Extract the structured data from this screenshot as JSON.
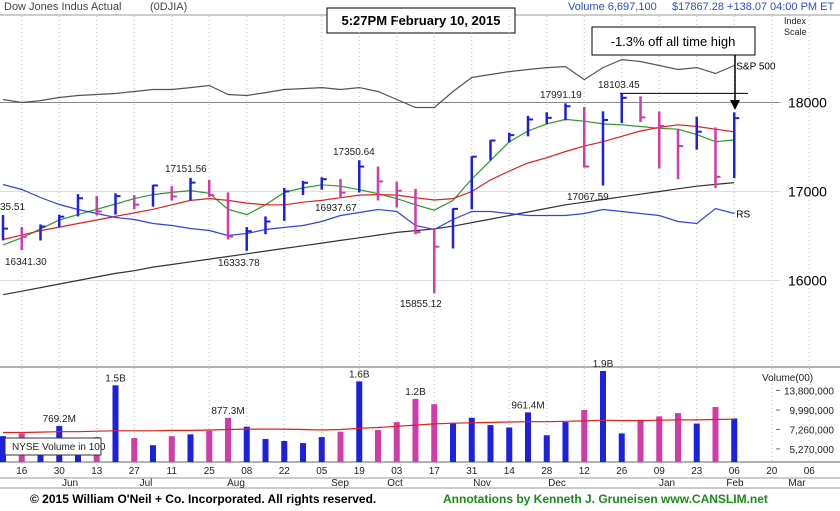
{
  "header": {
    "name": "Dow Jones Indus Actual",
    "symbol": "(0DJIA)",
    "volume": "Volume 6,697,100",
    "price": "$17867.28 +138.07",
    "time": "04:00 PM ET",
    "timestamp": "5:27PM February 10, 2015",
    "scale_label": [
      "Index",
      "Scale"
    ]
  },
  "chart_data": [
    {
      "type": "ohlc",
      "high": [
        16736,
        16600,
        16630,
        16740,
        16970,
        16950,
        16980,
        16960,
        17075,
        17060,
        17152,
        17130,
        16990,
        16600,
        16720,
        17040,
        17120,
        17160,
        17140,
        17351,
        17280,
        17110,
        17030,
        16590,
        16810,
        17395,
        17580,
        17660,
        17850,
        17890,
        17991,
        17950,
        17900,
        18103,
        18070,
        17900,
        17700,
        17840,
        17720,
        17890
      ],
      "low": [
        16450,
        16341,
        16450,
        16600,
        16720,
        16730,
        16740,
        16800,
        16830,
        16900,
        16900,
        16940,
        16460,
        16334,
        16520,
        16670,
        16960,
        17020,
        16938,
        16990,
        16900,
        16820,
        16520,
        15855,
        16360,
        16800,
        17350,
        17550,
        17620,
        17760,
        17800,
        17270,
        17068,
        17770,
        17780,
        17260,
        17140,
        17470,
        17040,
        17150
      ],
      "close": [
        16583,
        16491,
        16606,
        16717,
        16924,
        16776,
        16948,
        16852,
        17068,
        16944,
        17100,
        16961,
        16493,
        16554,
        16663,
        17001,
        17098,
        17138,
        16987,
        17280,
        17113,
        17009,
        16544,
        16380,
        16805,
        17391,
        17573,
        17634,
        17810,
        17828,
        17958,
        17280,
        17804,
        18053,
        17833,
        17737,
        17511,
        17672,
        17165,
        17825
      ],
      "up_color": "#1f1fe0",
      "down_color": "#d23ca8",
      "ylim": [
        15050,
        18950
      ],
      "yticks": [
        16000,
        17000,
        18000
      ],
      "grid": true,
      "lines": [
        {
          "color": "#2a9a2a",
          "values": [
            16400,
            16480,
            16580,
            16680,
            16740,
            16800,
            16860,
            16920,
            16965,
            16990,
            17010,
            16980,
            16800,
            16740,
            16850,
            16990,
            17040,
            17075,
            17060,
            17020,
            16975,
            16920,
            16850,
            16790,
            16900,
            17140,
            17350,
            17560,
            17680,
            17760,
            17810,
            17790,
            17760,
            17750,
            17730,
            17710,
            17700,
            17640,
            17560,
            17580
          ]
        },
        {
          "color": "#e0201a",
          "values": [
            16460,
            16510,
            16560,
            16600,
            16640,
            16680,
            16720,
            16760,
            16800,
            16850,
            16900,
            16920,
            16900,
            16870,
            16850,
            16850,
            16880,
            16900,
            16930,
            16960,
            16965,
            16960,
            16930,
            16905,
            16920,
            17000,
            17130,
            17230,
            17320,
            17380,
            17450,
            17510,
            17560,
            17620,
            17680,
            17720,
            17750,
            17730,
            17700,
            17670
          ]
        },
        {
          "color": "#333333",
          "values": [
            15840,
            15880,
            15920,
            15960,
            16000,
            16040,
            16080,
            16110,
            16150,
            16180,
            16210,
            16240,
            16270,
            16300,
            16330,
            16360,
            16390,
            16420,
            16450,
            16480,
            16510,
            16540,
            16560,
            16580,
            16610,
            16650,
            16690,
            16730,
            16770,
            16810,
            16850,
            16880,
            16910,
            16940,
            16970,
            17000,
            17030,
            17060,
            17080,
            17100
          ]
        },
        {
          "name": "S&P 500",
          "color": "#555555",
          "values": [
            18034,
            18000,
            18022,
            18056,
            18079,
            18090,
            18101,
            18124,
            18146,
            18146,
            18168,
            18191,
            18090,
            18079,
            18112,
            18146,
            18157,
            18168,
            18146,
            18168,
            18124,
            18034,
            17944,
            17944,
            18124,
            18281,
            18315,
            18348,
            18371,
            18393,
            18404,
            18258,
            18393,
            18483,
            18461,
            18416,
            18371,
            18393,
            18326,
            18416
          ]
        },
        {
          "name": "RS",
          "color": "#3344dd",
          "values": [
            17079,
            17022,
            16933,
            16854,
            16798,
            16753,
            16708,
            16685,
            16640,
            16618,
            16584,
            16562,
            16506,
            16528,
            16573,
            16596,
            16618,
            16663,
            16730,
            16764,
            16798,
            16775,
            16618,
            16573,
            16685,
            16775,
            16775,
            16753,
            16730,
            16730,
            16730,
            16753,
            16798,
            16775,
            16753,
            16730,
            16663,
            16640,
            16809,
            16753
          ]
        }
      ],
      "price_labels": [
        "35.51",
        "16341.30",
        "17151.56",
        "16333.78",
        "17350.64",
        "16937.67",
        "15855.12",
        "17991.19",
        "18103.45",
        "17067.59"
      ],
      "annotation": "-1.3% off all time high"
    },
    {
      "type": "bar",
      "categories": [
        null,
        "16",
        null,
        "30",
        null,
        "13",
        null,
        "27",
        null,
        "11",
        null,
        "25",
        null,
        "08",
        null,
        "22",
        null,
        "05",
        null,
        "19",
        null,
        "03",
        null,
        "17",
        null,
        "31",
        null,
        "14",
        null,
        "28",
        null,
        "12",
        null,
        "26",
        null,
        "09",
        null,
        "23",
        null,
        "06",
        null,
        "20",
        null,
        "06"
      ],
      "months": [
        "Jun",
        "Jul",
        "Aug",
        "Sep",
        "Oct",
        "Nov",
        "Dec",
        "Jan",
        "Feb",
        "Mar"
      ],
      "values": [
        6500000,
        6800000,
        6000000,
        7692000,
        6200000,
        6400000,
        15000000,
        6300000,
        5600000,
        6500000,
        6700000,
        7100000,
        8773000,
        7600000,
        6200000,
        6000000,
        5800000,
        6400000,
        7000000,
        16000000,
        7200000,
        8200000,
        12000000,
        11000000,
        8000000,
        8800000,
        7800000,
        7500000,
        9614000,
        6600000,
        8200000,
        10000000,
        19000000,
        6800000,
        8500000,
        9000000,
        9500000,
        8000000,
        10500000,
        8700000,
        null,
        null,
        null,
        null
      ],
      "value_labels": [
        null,
        null,
        null,
        "769.2M",
        null,
        null,
        "1.5B",
        null,
        null,
        null,
        null,
        null,
        "877.3M",
        null,
        null,
        null,
        null,
        null,
        null,
        "1.6B",
        null,
        null,
        "1.2B",
        null,
        null,
        null,
        null,
        null,
        "961.4M",
        null,
        null,
        null,
        "1.9B",
        null,
        null,
        null,
        null,
        null,
        null,
        null,
        null,
        null,
        null,
        null
      ],
      "ma": {
        "color": "#e0201a",
        "values": [
          6900000,
          6900000,
          6950000,
          7000000,
          7000000,
          7050000,
          7100000,
          7100000,
          7100000,
          7150000,
          7150000,
          7200000,
          7250000,
          7300000,
          7300000,
          7300000,
          7250000,
          7200000,
          7250000,
          7400000,
          7500000,
          7650000,
          7800000,
          7950000,
          8050000,
          8100000,
          8150000,
          8200000,
          8250000,
          8250000,
          8300000,
          8350000,
          8450000,
          8400000,
          8400000,
          8450000,
          8500000,
          8500000,
          8550000,
          8600000,
          null,
          null,
          null,
          null
        ]
      },
      "ylim": [
        4250000,
        19950000
      ],
      "log": true,
      "yticks": [
        {
          "value": 13800000,
          "label": "13,800,000"
        },
        {
          "value": 9990000,
          "label": "9,990,000"
        },
        {
          "value": 7260000,
          "label": "7,260,000"
        },
        {
          "value": 5270000,
          "label": "5,270,000"
        }
      ],
      "axis_title": "Volume(00)",
      "legend": "NYSE Volume in 100"
    }
  ],
  "footer": {
    "copyright": "© 2015 William O'Neil + Co. Incorporated. All rights reserved.",
    "credit": "Annotations by Kenneth J. Gruneisen www.CANSLIM.net"
  }
}
